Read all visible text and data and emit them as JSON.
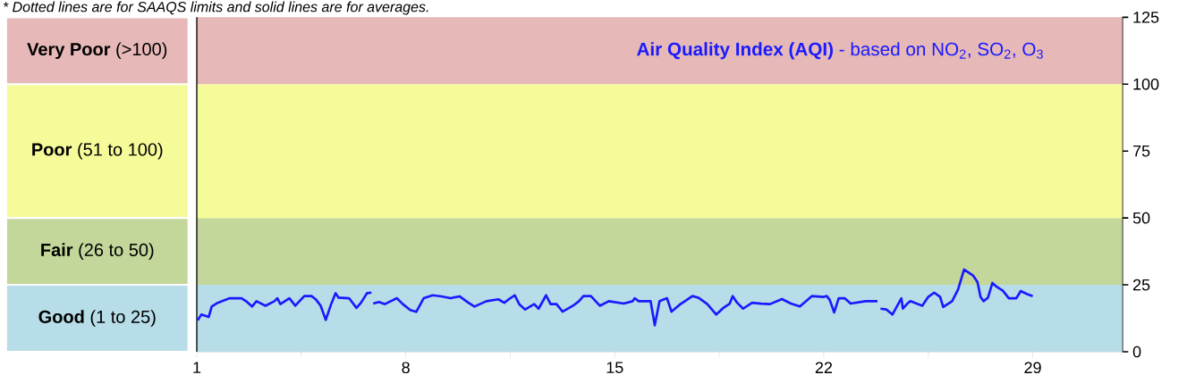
{
  "chart_data": {
    "type": "line",
    "title": "**Air Quality Index (AQI)** - based on NO$_{2}$, SO$_{2}$, O$_{3}$",
    "annotations": [
      "* Dotted lines are for SAAQS limits and solid lines are for averages."
    ],
    "x": [
      1.03,
      1.15,
      1.4,
      1.5,
      1.7,
      1.85,
      2.1,
      2.5,
      2.65,
      2.85,
      3.0,
      3.3,
      3.6,
      3.7,
      3.8,
      4.1,
      4.3,
      4.6,
      4.85,
      5.0,
      5.15,
      5.32,
      5.5,
      5.65,
      5.75,
      6.1,
      6.35,
      6.5,
      6.7,
      6.85,
      6.88,
      6.91,
      7.1,
      7.3,
      7.7,
      7.9,
      8.15,
      8.35,
      8.6,
      8.9,
      9.2,
      9.5,
      9.8,
      10.1,
      10.3,
      10.7,
      11.1,
      11.3,
      11.5,
      11.65,
      11.8,
      12.0,
      12.3,
      12.45,
      12.7,
      12.85,
      13.05,
      13.25,
      13.6,
      13.8,
      13.95,
      14.2,
      14.5,
      14.8,
      15.3,
      15.6,
      15.67,
      15.8,
      16.2,
      16.34,
      16.5,
      16.75,
      16.9,
      17.2,
      17.6,
      17.8,
      18.1,
      18.4,
      18.65,
      18.85,
      18.95,
      19.1,
      19.3,
      19.6,
      19.9,
      20.2,
      20.6,
      20.9,
      21.2,
      21.6,
      22.0,
      22.1,
      22.2,
      22.35,
      22.5,
      22.7,
      22.9,
      23.4,
      23.8,
      23.85,
      23.9,
      24.1,
      24.3,
      24.6,
      24.65,
      24.8,
      24.9,
      25.3,
      25.5,
      25.7,
      25.9,
      26.0,
      26.3,
      26.5,
      26.7,
      26.85,
      27.0,
      27.15,
      27.25,
      27.35,
      27.5,
      27.65,
      27.8,
      28.0,
      28.2,
      28.45,
      28.6,
      28.8,
      29.0
    ],
    "series": [
      {
        "color": "#1a1aff",
        "values": [
          11.7,
          13.9,
          13,
          16.9,
          18.3,
          18.9,
          20.0,
          20.0,
          18.9,
          16.9,
          18.9,
          17.2,
          18.9,
          20,
          17.8,
          20,
          17.2,
          20.8,
          20.8,
          19.4,
          17.2,
          11.9,
          17.8,
          21.9,
          20.2,
          20,
          16.4,
          18.3,
          21.9,
          22.1,
          null,
          18.0,
          18.6,
          17.8,
          20,
          17.8,
          15.6,
          14.9,
          20,
          21.1,
          20.7,
          20,
          20.7,
          18.3,
          16.9,
          18.9,
          19.6,
          18.3,
          20,
          21.1,
          17.8,
          15.8,
          17.8,
          16.1,
          21.1,
          17.8,
          17.8,
          15.0,
          17.2,
          18.9,
          20.8,
          20.8,
          17.2,
          18.9,
          18.0,
          18.9,
          20,
          18.9,
          18.9,
          9.9,
          18.9,
          20,
          15.0,
          17.8,
          20.8,
          20.2,
          17.8,
          13.9,
          16.5,
          18.0,
          20.8,
          18.3,
          16.1,
          18.3,
          18.0,
          17.8,
          19.7,
          18.0,
          16.9,
          20.8,
          20.5,
          20.8,
          19.4,
          14.7,
          20,
          20,
          18.0,
          18.9,
          18.9,
          null,
          16.1,
          15.8,
          13.9,
          20,
          16.1,
          18.0,
          18.9,
          17.2,
          20.5,
          22.1,
          20.5,
          16.7,
          18.9,
          23.3,
          30.7,
          29.6,
          28.5,
          26.0,
          20.5,
          18.9,
          20.2,
          25.7,
          24.2,
          22.8,
          20,
          20,
          22.7,
          21.6,
          20.8
        ]
      }
    ],
    "xlim": [
      1,
      32
    ],
    "xticks": [
      1,
      {
        "value": 4.5,
        "label": null
      },
      8,
      {
        "value": 11.5,
        "label": null
      },
      15,
      {
        "value": 18.5,
        "label": null
      },
      22,
      {
        "value": 25.5,
        "label": null
      },
      29
    ],
    "ylim": [
      0,
      125
    ],
    "yticks": [
      0,
      25,
      50,
      75,
      100,
      125
    ],
    "bands": [
      {
        "axis": "y",
        "from": 0,
        "to": 25,
        "label": "**Good** (1 to 25)",
        "color": "#b7dde8"
      },
      {
        "axis": "y",
        "from": 25,
        "to": 50,
        "label": "**Fair** (26 to 50)",
        "color": "#c4d79b"
      },
      {
        "axis": "y",
        "from": 50,
        "to": 100,
        "label": "**Poor** (51 to 100)",
        "color": "#f5fb99"
      },
      {
        "axis": "y",
        "from": 100,
        "to": 125,
        "label": "**Very Poor** (>100)",
        "color": "#e6b8b7"
      }
    ],
    "grid": false,
    "marker": "none",
    "line_style": "solid"
  }
}
